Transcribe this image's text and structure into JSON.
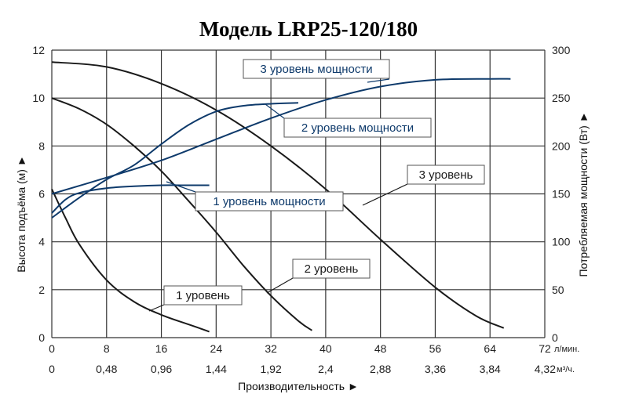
{
  "chart_data": {
    "type": "line",
    "title": "Модель LRP25-120/180",
    "xlabel": "Производительность ►",
    "ylabel": "Высота подъёма (м) ►",
    "y2label": "Потребляемая мощности (Вт) ►",
    "xlim": [
      0,
      72
    ],
    "ylim": [
      0,
      12
    ],
    "y2lim": [
      0,
      300
    ],
    "grid": true,
    "x_ticks": [
      "0",
      "8",
      "16",
      "24",
      "32",
      "40",
      "48",
      "56",
      "64",
      "72"
    ],
    "x_unit": "л/мин.",
    "x2_ticks": [
      "0",
      "0,48",
      "0,96",
      "1,44",
      "1,92",
      "2,4",
      "2,88",
      "3,36",
      "3,84",
      "4,32"
    ],
    "x2_unit": "м³/ч.",
    "y_ticks": [
      "0",
      "2",
      "4",
      "6",
      "8",
      "10",
      "12"
    ],
    "y2_ticks": [
      "0",
      "50",
      "100",
      "150",
      "200",
      "250",
      "300"
    ],
    "colors": {
      "head": "#1a1a1a",
      "power": "#0e3a6b",
      "grid": "#333333"
    },
    "head_series": [
      {
        "name": "1 уровень",
        "x": [
          0,
          2,
          4,
          8,
          12,
          16,
          20,
          23
        ],
        "y": [
          6.2,
          5.0,
          3.9,
          2.4,
          1.5,
          0.95,
          0.55,
          0.25
        ]
      },
      {
        "name": "2 уровень",
        "x": [
          0,
          4,
          8,
          12,
          16,
          20,
          24,
          28,
          32,
          36,
          38
        ],
        "y": [
          10.0,
          9.55,
          8.9,
          8.0,
          6.95,
          5.7,
          4.4,
          3.0,
          1.75,
          0.7,
          0.3
        ]
      },
      {
        "name": "3 уровень",
        "x": [
          0,
          8,
          16,
          24,
          32,
          40,
          48,
          56,
          62,
          66
        ],
        "y": [
          11.5,
          11.3,
          10.6,
          9.5,
          8.0,
          6.2,
          4.1,
          2.1,
          0.9,
          0.4
        ]
      }
    ],
    "power_series": [
      {
        "name": "1 уровень мощности",
        "x": [
          0,
          2,
          4,
          8,
          12,
          16,
          20,
          23
        ],
        "y": [
          130,
          144,
          151,
          156,
          158,
          159,
          159,
          159
        ]
      },
      {
        "name": "2 уровень мощности",
        "x": [
          0,
          4,
          8,
          12,
          16,
          20,
          24,
          28,
          32,
          36
        ],
        "y": [
          125,
          146,
          165,
          180,
          202,
          222,
          236,
          242,
          244,
          245
        ]
      },
      {
        "name": "3 уровень мощности",
        "x": [
          0,
          8,
          16,
          24,
          32,
          40,
          48,
          56,
          64,
          67
        ],
        "y": [
          150,
          167,
          185,
          207,
          229,
          248,
          262,
          269,
          270,
          270
        ]
      }
    ],
    "annotations": [
      {
        "text": "3 уровень мощности",
        "target": "3 уровень мощности"
      },
      {
        "text": "2 уровень мощности",
        "target": "2 уровень мощности"
      },
      {
        "text": "1 уровень мощности",
        "target": "1 уровень мощности"
      },
      {
        "text": "3 уровень",
        "target": "3 уровень"
      },
      {
        "text": "2 уровень",
        "target": "2 уровень"
      },
      {
        "text": "1 уровень",
        "target": "1 уровень"
      }
    ]
  }
}
